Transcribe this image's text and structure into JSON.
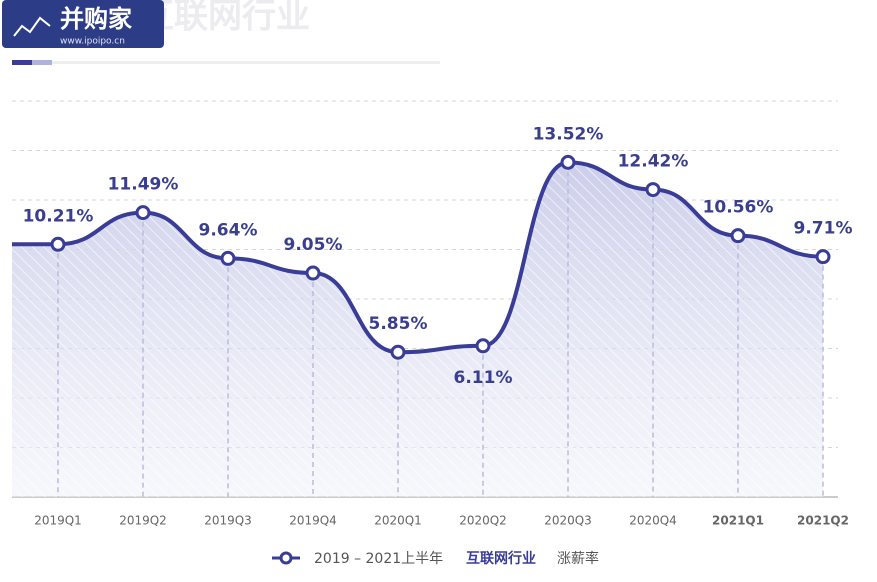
{
  "chart_data": {
    "type": "line",
    "title": "互联网行业",
    "watermark": {
      "logo": "并购家",
      "url": "www.ipoipo.cn"
    },
    "categories": [
      "2019Q1",
      "2019Q2",
      "2019Q3",
      "2019Q4",
      "2020Q1",
      "2020Q2",
      "2020Q3",
      "2020Q4",
      "2021Q1",
      "2021Q2"
    ],
    "series": [
      {
        "name": "互联网行业",
        "color": "#393d97",
        "values": [
          10.21,
          11.49,
          9.64,
          9.05,
          5.85,
          6.11,
          13.52,
          12.42,
          10.56,
          9.71
        ],
        "value_labels": [
          "10.21%",
          "11.49%",
          "9.64%",
          "9.05%",
          "5.85%",
          "6.11%",
          "13.52%",
          "12.42%",
          "10.56%",
          "9.71%"
        ]
      }
    ],
    "legend_prefix": "2019 – 2021上半年",
    "legend_suffix": "涨薪率",
    "ylim": [
      0,
      16
    ],
    "yticks": [
      0,
      2,
      4,
      6,
      8,
      10,
      12,
      14,
      16
    ],
    "grid": true
  }
}
